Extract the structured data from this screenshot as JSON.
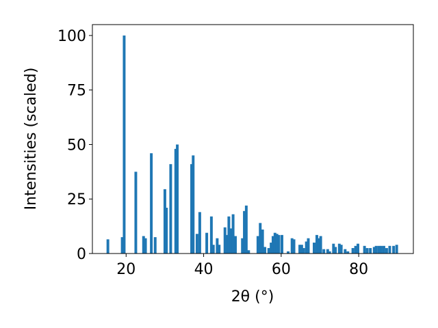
{
  "chart_data": {
    "type": "bar",
    "x": [
      15.3,
      19.0,
      19.5,
      22.5,
      24.5,
      25.0,
      26.5,
      27.5,
      30.0,
      30.4,
      31.5,
      32.8,
      33.2,
      36.9,
      37.3,
      38.3,
      39.0,
      40.8,
      42.0,
      42.5,
      43.5,
      44.0,
      45.5,
      46.0,
      46.5,
      47.0,
      47.6,
      48.2,
      50.0,
      50.5,
      51.0,
      51.6,
      54.0,
      54.6,
      55.2,
      55.8,
      56.8,
      57.4,
      57.9,
      58.4,
      58.9,
      59.4,
      60.2,
      61.8,
      62.8,
      63.3,
      64.8,
      65.3,
      65.8,
      66.5,
      67.0,
      68.5,
      69.2,
      69.7,
      70.2,
      71.0,
      72.0,
      72.5,
      73.5,
      74.0,
      75.0,
      75.5,
      76.5,
      77.2,
      78.5,
      79.2,
      79.8,
      81.5,
      82.2,
      83.0,
      84.0,
      84.5,
      85.2,
      85.8,
      86.5,
      87.2,
      88.0,
      89.0,
      89.8
    ],
    "values": [
      6.5,
      7.5,
      100,
      37.5,
      8,
      7,
      46,
      7.5,
      29.5,
      21,
      41,
      48,
      50,
      41,
      45,
      9,
      19,
      9.5,
      17,
      4,
      7,
      4,
      12,
      8.5,
      17,
      11.5,
      18,
      8,
      7,
      19.5,
      22,
      1.5,
      8,
      14,
      11,
      3,
      2.5,
      5,
      8,
      9.5,
      9,
      8.5,
      8.5,
      1,
      7,
      6.5,
      4,
      4,
      2.5,
      5.5,
      7,
      5,
      8.5,
      7,
      8,
      2,
      2,
      1,
      4.5,
      3,
      4.5,
      4,
      2,
      1,
      2.5,
      3.5,
      4.5,
      3.5,
      2.5,
      2.5,
      3,
      3.5,
      3.5,
      3.5,
      3.5,
      2.5,
      3.5,
      3.5,
      4
    ],
    "color": "#1f77b4",
    "xlabel": "2θ (°)",
    "ylabel": "Intensities (scaled)",
    "xlim": [
      11.3,
      94.1
    ],
    "ylim": [
      0,
      105
    ],
    "xticks": [
      20,
      40,
      60,
      80
    ],
    "yticks": [
      0,
      25,
      50,
      75,
      100
    ]
  }
}
